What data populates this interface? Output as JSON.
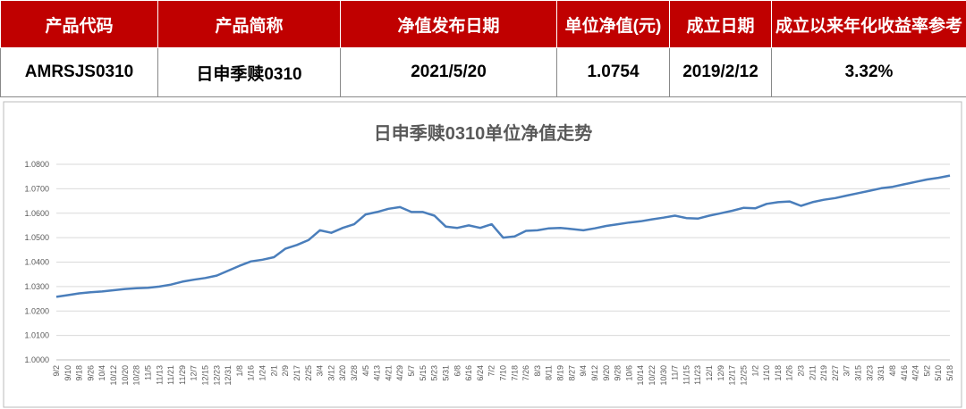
{
  "table": {
    "header": [
      "产品代码",
      "产品简称",
      "净值发布日期",
      "单位净值(元)",
      "成立日期",
      "成立以来年化收益率参考"
    ],
    "rows": [
      [
        "AMRSJS0310",
        "日申季赎0310",
        "2021/5/20",
        "1.0754",
        "2019/2/12",
        "3.32%"
      ]
    ]
  },
  "chart_data": {
    "type": "line",
    "title": "日申季赎0310单位净值走势",
    "categories": [
      "9/2",
      "9/10",
      "9/18",
      "9/26",
      "10/4",
      "10/12",
      "10/20",
      "10/28",
      "11/5",
      "11/13",
      "11/21",
      "11/29",
      "12/7",
      "12/15",
      "12/23",
      "12/31",
      "1/8",
      "1/16",
      "1/24",
      "2/1",
      "2/9",
      "2/17",
      "2/25",
      "3/4",
      "3/12",
      "3/20",
      "3/28",
      "4/5",
      "4/13",
      "4/21",
      "4/29",
      "5/7",
      "5/15",
      "5/23",
      "5/31",
      "6/8",
      "6/16",
      "6/24",
      "7/2",
      "7/10",
      "7/18",
      "7/26",
      "8/3",
      "8/11",
      "8/19",
      "8/27",
      "9/4",
      "9/12",
      "9/20",
      "9/28",
      "10/6",
      "10/14",
      "10/22",
      "10/30",
      "11/7",
      "11/15",
      "11/23",
      "12/1",
      "12/9",
      "12/17",
      "12/25",
      "1/2",
      "1/10",
      "1/18",
      "1/26",
      "2/3",
      "2/11",
      "2/19",
      "2/27",
      "3/7",
      "3/15",
      "3/23",
      "3/31",
      "4/8",
      "4/16",
      "4/24",
      "5/2",
      "5/10",
      "5/18"
    ],
    "series": [
      {
        "name": "单位净值",
        "color": "#4a7ebb",
        "values": [
          1.0258,
          1.0265,
          1.0272,
          1.0277,
          1.028,
          1.0285,
          1.029,
          1.0293,
          1.0295,
          1.03,
          1.0308,
          1.032,
          1.0328,
          1.0335,
          1.0345,
          1.0365,
          1.0385,
          1.0403,
          1.041,
          1.042,
          1.0455,
          1.047,
          1.049,
          1.053,
          1.052,
          1.054,
          1.0555,
          1.0595,
          1.0605,
          1.0618,
          1.0625,
          1.0605,
          1.0605,
          1.059,
          1.0545,
          1.054,
          1.055,
          1.054,
          1.0555,
          1.05,
          1.0505,
          1.0528,
          1.053,
          1.0538,
          1.054,
          1.0535,
          1.053,
          1.0538,
          1.0548,
          1.0555,
          1.0562,
          1.0567,
          1.0575,
          1.0582,
          1.059,
          1.058,
          1.0578,
          1.059,
          1.06,
          1.061,
          1.0622,
          1.062,
          1.0638,
          1.0645,
          1.0648,
          1.063,
          1.0645,
          1.0655,
          1.0662,
          1.0672,
          1.0682,
          1.0692,
          1.0702,
          1.0708,
          1.0718,
          1.0728,
          1.0738,
          1.0745,
          1.0754
        ]
      }
    ],
    "ylim": [
      1.0,
      1.08
    ],
    "yticks": [
      {
        "value": 1.0,
        "label": "1.0000"
      },
      {
        "value": 1.01,
        "label": "1.0100"
      },
      {
        "value": 1.02,
        "label": "1.0200"
      },
      {
        "value": 1.03,
        "label": "1.0300"
      },
      {
        "value": 1.04,
        "label": "1.0400"
      },
      {
        "value": 1.05,
        "label": "1.0500"
      },
      {
        "value": 1.06,
        "label": "1.0600"
      },
      {
        "value": 1.07,
        "label": "1.0700"
      },
      {
        "value": 1.08,
        "label": "1.0800"
      }
    ],
    "grid": true
  }
}
